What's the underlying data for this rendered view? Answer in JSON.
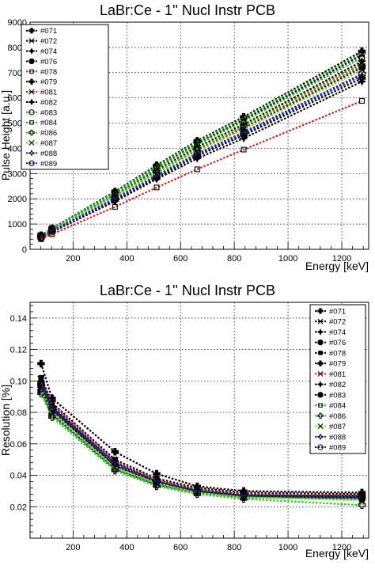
{
  "chart_data": [
    {
      "type": "line",
      "title": "LaBr:Ce - 1''  Nucl Instr PCB",
      "xlabel": "Energy [keV]",
      "ylabel": "Pulse Height [a.u.]",
      "xlim": [
        40,
        1300
      ],
      "ylim": [
        0,
        9000
      ],
      "xticks": [
        200,
        400,
        600,
        800,
        1000,
        1200
      ],
      "yticks": [
        0,
        1000,
        2000,
        3000,
        4000,
        5000,
        6000,
        7000,
        8000,
        9000
      ],
      "grid": true,
      "legend_position": "top-left",
      "x": [
        81,
        122,
        356,
        511,
        662,
        835,
        1275
      ],
      "series": [
        {
          "name": "#071",
          "color": "#000000",
          "values": [
            555,
            830,
            2290,
            3330,
            4300,
            5250,
            7850
          ]
        },
        {
          "name": "#072",
          "color": "#000000",
          "values": [
            540,
            810,
            2230,
            3250,
            4200,
            5130,
            7700
          ]
        },
        {
          "name": "#074",
          "color": "#000000",
          "values": [
            520,
            780,
            2150,
            3120,
            4050,
            4950,
            7450
          ]
        },
        {
          "name": "#076",
          "color": "#000000",
          "values": [
            500,
            750,
            2080,
            3020,
            3920,
            4800,
            7200
          ]
        },
        {
          "name": "#078",
          "color": "#cc2222",
          "values": [
            505,
            760,
            2100,
            3040,
            3950,
            4840,
            7250
          ]
        },
        {
          "name": "#079",
          "color": "#000000",
          "values": [
            470,
            710,
            1950,
            2850,
            3700,
            4520,
            6780
          ]
        },
        {
          "name": "#081",
          "color": "#cc2222",
          "values": [
            515,
            770,
            2120,
            3080,
            4000,
            4900,
            7350
          ]
        },
        {
          "name": "#082",
          "color": "#000000",
          "values": [
            460,
            690,
            1900,
            2780,
            3600,
            4400,
            6650
          ]
        },
        {
          "name": "#083",
          "color": "#22aa22",
          "values": [
            545,
            820,
            2260,
            3290,
            4260,
            5200,
            7780
          ]
        },
        {
          "name": "#084",
          "color": "#22aa22",
          "values": [
            530,
            800,
            2200,
            3200,
            4150,
            5070,
            7600
          ]
        },
        {
          "name": "#086",
          "color": "#22cc22",
          "values": [
            510,
            765,
            2110,
            3070,
            3980,
            4880,
            7300
          ]
        },
        {
          "name": "#087",
          "color": "#88dd22",
          "values": [
            495,
            745,
            2050,
            2990,
            3880,
            4750,
            7100
          ]
        },
        {
          "name": "#088",
          "color": "#2222aa",
          "values": [
            480,
            720,
            1980,
            2890,
            3750,
            4580,
            6880
          ]
        },
        {
          "name": "#089",
          "color": "#2222aa",
          "values": [
            485,
            730,
            2010,
            2920,
            3790,
            4640,
            6950
          ]
        },
        {
          "name": "",
          "color": "#cc2222",
          "values": [
            400,
            600,
            1680,
            2450,
            3170,
            3950,
            5880
          ]
        }
      ]
    },
    {
      "type": "line",
      "title": "LaBr:Ce - 1''  Nucl Instr PCB",
      "xlabel": "Energy [keV]",
      "ylabel": "Resolution [%]",
      "xlim": [
        40,
        1300
      ],
      "ylim": [
        0,
        0.15
      ],
      "xticks": [
        200,
        400,
        600,
        800,
        1000,
        1200
      ],
      "yticks": [
        0.02,
        0.04,
        0.06,
        0.08,
        0.1,
        0.12,
        0.14
      ],
      "grid": true,
      "legend_position": "top-right",
      "x": [
        81,
        122,
        356,
        511,
        662,
        835,
        1275
      ],
      "series": [
        {
          "name": "#071",
          "color": "#000000",
          "values": [
            0.098,
            0.083,
            0.047,
            0.036,
            0.03,
            0.027,
            0.027
          ]
        },
        {
          "name": "#072",
          "color": "#000000",
          "values": [
            0.095,
            0.08,
            0.045,
            0.035,
            0.029,
            0.026,
            0.026
          ]
        },
        {
          "name": "#074",
          "color": "#000000",
          "values": [
            0.1,
            0.084,
            0.048,
            0.037,
            0.031,
            0.028,
            0.026
          ]
        },
        {
          "name": "#076",
          "color": "#000000",
          "values": [
            0.097,
            0.082,
            0.046,
            0.036,
            0.03,
            0.027,
            0.027
          ]
        },
        {
          "name": "#078",
          "color": "#000000",
          "values": [
            0.102,
            0.086,
            0.05,
            0.038,
            0.032,
            0.029,
            0.028
          ]
        },
        {
          "name": "#079",
          "color": "#000000",
          "values": [
            0.111,
            0.089,
            0.055,
            0.041,
            0.033,
            0.03,
            0.029
          ]
        },
        {
          "name": "#081",
          "color": "#cc2222",
          "values": [
            0.101,
            0.085,
            0.049,
            0.037,
            0.031,
            0.028,
            0.027
          ]
        },
        {
          "name": "#082",
          "color": "#000000",
          "values": [
            0.096,
            0.081,
            0.046,
            0.035,
            0.03,
            0.027,
            0.026
          ]
        },
        {
          "name": "#083",
          "color": "#000000",
          "values": [
            0.094,
            0.079,
            0.044,
            0.034,
            0.029,
            0.026,
            0.025
          ]
        },
        {
          "name": "#084",
          "color": "#22aa22",
          "values": [
            0.093,
            0.078,
            0.044,
            0.034,
            0.029,
            0.026,
            0.025
          ]
        },
        {
          "name": "#086",
          "color": "#22cc22",
          "values": [
            0.092,
            0.077,
            0.043,
            0.033,
            0.028,
            0.025,
            0.021
          ]
        },
        {
          "name": "#087",
          "color": "#88dd22",
          "values": [
            0.095,
            0.08,
            0.045,
            0.035,
            0.029,
            0.026,
            0.024
          ]
        },
        {
          "name": "#088",
          "color": "#2222aa",
          "values": [
            0.098,
            0.082,
            0.047,
            0.036,
            0.03,
            0.027,
            0.026
          ]
        },
        {
          "name": "#089",
          "color": "#2222aa",
          "values": [
            0.099,
            0.083,
            0.048,
            0.036,
            0.03,
            0.027,
            0.026
          ]
        }
      ]
    }
  ]
}
